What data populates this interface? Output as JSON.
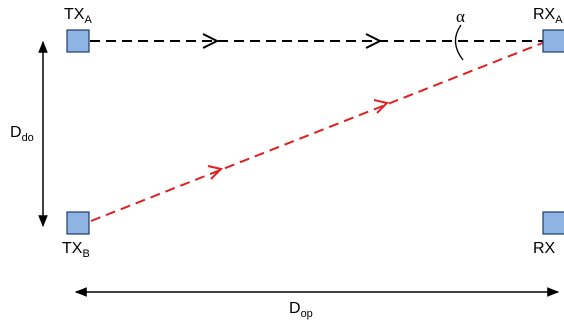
{
  "diagram": {
    "nodes": {
      "tx_a": {
        "label": "TX",
        "subscript": "A"
      },
      "tx_b": {
        "label": "TX",
        "subscript": "B"
      },
      "rx_a": {
        "label": "RX",
        "subscript": "A"
      },
      "rx_b": {
        "label": "RX",
        "subscript": ""
      }
    },
    "angle_label": "α",
    "vertical_distance": {
      "label": "D",
      "subscript": "do"
    },
    "horizontal_distance": {
      "label": "D",
      "subscript": "op"
    }
  },
  "colors": {
    "node_fill": "#8db4e2",
    "node_stroke": "#1f3a6b",
    "direct_link": "#000000",
    "cross_link": "#e02020",
    "text": "#000000"
  }
}
